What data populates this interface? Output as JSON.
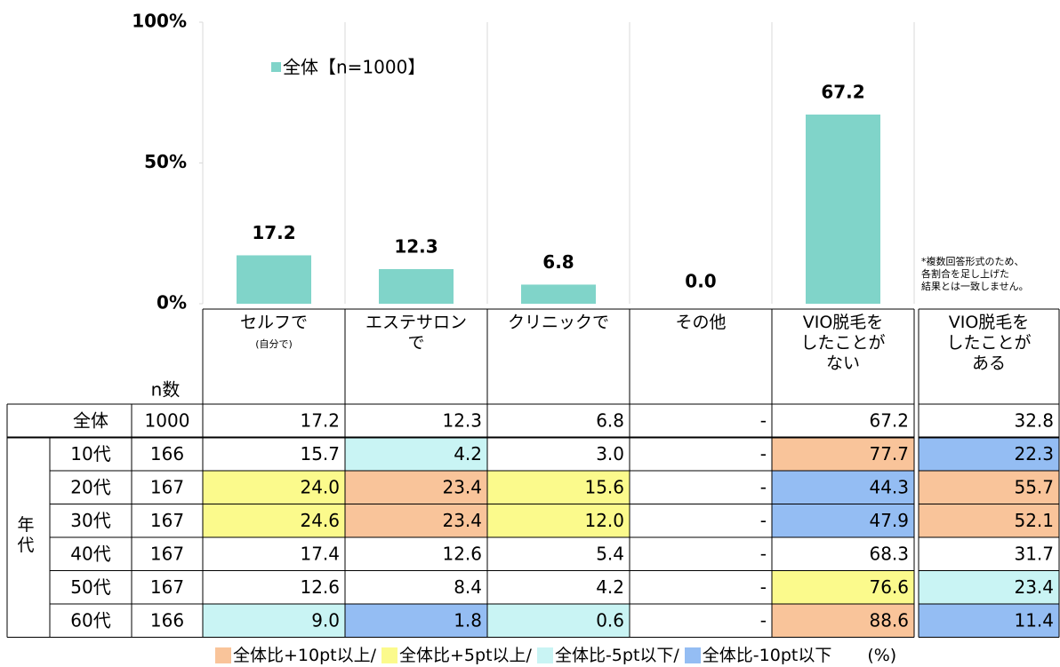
{
  "chart_data": {
    "type": "bar",
    "categories": [
      "セルフで",
      "エステサロン\nで",
      "クリニックで",
      "その他",
      "VIO脱毛を\nしたことが\nない"
    ],
    "category_sublabel": "(自分で)",
    "values": [
      17.2,
      12.3,
      6.8,
      0.0,
      67.2
    ],
    "value_labels": [
      "17.2",
      "12.3",
      "6.8",
      "0.0",
      "67.2"
    ],
    "series_name": "全体【n=1000】",
    "color": "#80d4c9",
    "ylim": [
      0,
      100
    ],
    "yticks": [
      {
        "value": 0,
        "label": "0%"
      },
      {
        "value": 50,
        "label": "50%"
      },
      {
        "value": 100,
        "label": "100%"
      }
    ],
    "note": "*複数回答形式のため、\n各割合を足し上げた\n結果とは一致しません。"
  },
  "table": {
    "n_header": "n数",
    "group_label": "年代",
    "extra_column": "VIO脱毛を\nしたことが\nある",
    "total_row": {
      "label": "全体",
      "n": "1000",
      "values": [
        "17.2",
        "12.3",
        "6.8",
        "-",
        "67.2",
        "32.8"
      ]
    },
    "rows": [
      {
        "label": "10代",
        "n": "166",
        "values": [
          "15.7",
          "4.2",
          "3.0",
          "-",
          "77.7",
          "22.3"
        ],
        "highlight": [
          null,
          2,
          null,
          null,
          0,
          3
        ]
      },
      {
        "label": "20代",
        "n": "167",
        "values": [
          "24.0",
          "23.4",
          "15.6",
          "-",
          "44.3",
          "55.7"
        ],
        "highlight": [
          1,
          0,
          1,
          null,
          3,
          0
        ]
      },
      {
        "label": "30代",
        "n": "167",
        "values": [
          "24.6",
          "23.4",
          "12.0",
          "-",
          "47.9",
          "52.1"
        ],
        "highlight": [
          1,
          0,
          1,
          null,
          3,
          0
        ]
      },
      {
        "label": "40代",
        "n": "167",
        "values": [
          "17.4",
          "12.6",
          "5.4",
          "-",
          "68.3",
          "31.7"
        ],
        "highlight": [
          null,
          null,
          null,
          null,
          null,
          null
        ]
      },
      {
        "label": "50代",
        "n": "167",
        "values": [
          "12.6",
          "8.4",
          "4.2",
          "-",
          "76.6",
          "23.4"
        ],
        "highlight": [
          null,
          null,
          null,
          null,
          1,
          2
        ]
      },
      {
        "label": "60代",
        "n": "166",
        "values": [
          "9.0",
          "1.8",
          "0.6",
          "-",
          "88.6",
          "11.4"
        ],
        "highlight": [
          2,
          3,
          2,
          null,
          0,
          3
        ]
      }
    ],
    "legend": [
      {
        "name": "全体比+10pt以上/",
        "color": "#f9c49a"
      },
      {
        "name": "全体比+5pt以上/",
        "color": "#fbfa8c"
      },
      {
        "name": "全体比-5pt以下/",
        "color": "#c9f4f4"
      },
      {
        "name": "全体比-10pt以下",
        "color": "#94bdf3"
      }
    ],
    "unit": "(%)"
  }
}
